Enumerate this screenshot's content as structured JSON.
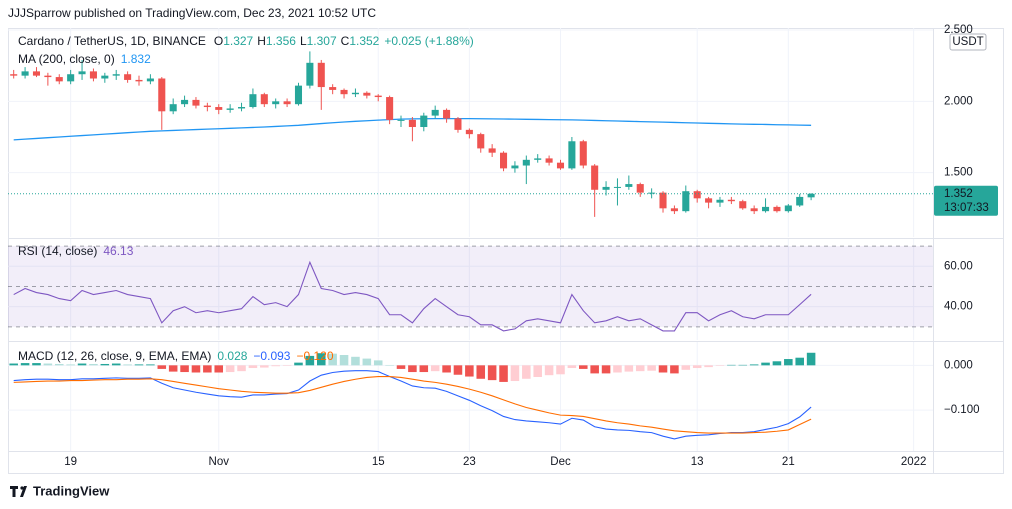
{
  "header": {
    "publisher": "JJJSparrow published on TradingView.com, Dec 23, 2021 10:52 UTC",
    "ohlc_letters": [
      "O",
      "H",
      "L",
      "C"
    ],
    "change": "+0.025 (+1.88%)",
    "currency": "USDT",
    "countdown": "13:07:33",
    "brand": "TradingView"
  },
  "chart_data": [
    {
      "type": "candlestick",
      "xlim": [
        -0.5,
        80.7
      ],
      "ylim": [
        1.049,
        2.514
      ],
      "yticks": [
        {
          "value": 1.5,
          "label": "1.500"
        },
        {
          "value": 2,
          "label": "2.000"
        },
        {
          "value": 2.5,
          "label": "2.500"
        }
      ],
      "grid": true,
      "series": [
        {
          "name": "Cardano / TetherUS, 1D, BINANCE",
          "up_color": "#26a69a",
          "down_color": "#ef5350",
          "open": [
            2.19,
            2.18,
            2.21,
            2.18,
            2.17,
            2.14,
            2.19,
            2.21,
            2.16,
            2.18,
            2.19,
            2.15,
            2.14,
            2.16,
            1.93,
            1.98,
            2.01,
            1.97,
            1.96,
            1.94,
            1.95,
            1.96,
            2.05,
            1.98,
            2.0,
            1.98,
            2.11,
            2.27,
            2.1,
            2.08,
            2.05,
            2.06,
            2.04,
            2.03,
            1.87,
            1.87,
            1.82,
            1.9,
            1.94,
            1.88,
            1.8,
            1.77,
            1.67,
            1.64,
            1.53,
            1.55,
            1.59,
            1.6,
            1.57,
            1.53,
            1.72,
            1.55,
            1.38,
            1.4,
            1.4,
            1.42,
            1.36,
            1.36,
            1.25,
            1.23,
            1.37,
            1.32,
            1.29,
            1.31,
            1.3,
            1.25,
            1.23,
            1.26,
            1.23,
            1.27,
            1.327
          ],
          "high": [
            2.22,
            2.24,
            2.24,
            2.2,
            2.19,
            2.22,
            2.29,
            2.23,
            2.2,
            2.22,
            2.21,
            2.18,
            2.19,
            2.17,
            2.02,
            2.04,
            2.03,
            1.99,
            1.98,
            1.98,
            1.99,
            2.09,
            2.06,
            2.02,
            2.02,
            2.13,
            2.35,
            2.29,
            2.12,
            2.09,
            2.09,
            2.07,
            2.05,
            2.04,
            1.9,
            1.89,
            1.92,
            1.97,
            1.95,
            1.89,
            1.81,
            1.78,
            1.7,
            1.65,
            1.58,
            1.62,
            1.63,
            1.62,
            1.59,
            1.75,
            1.73,
            1.56,
            1.44,
            1.46,
            1.48,
            1.43,
            1.39,
            1.37,
            1.27,
            1.41,
            1.38,
            1.33,
            1.33,
            1.33,
            1.31,
            1.27,
            1.32,
            1.27,
            1.28,
            1.35,
            1.356
          ],
          "low": [
            2.16,
            2.16,
            2.17,
            2.11,
            2.12,
            2.12,
            2.15,
            2.14,
            2.13,
            2.15,
            2.13,
            2.11,
            2.12,
            1.8,
            1.91,
            1.96,
            1.95,
            1.93,
            1.91,
            1.92,
            1.93,
            1.95,
            1.96,
            1.95,
            1.96,
            1.97,
            2.09,
            1.94,
            2.05,
            2.02,
            2.03,
            2.02,
            2.0,
            1.84,
            1.82,
            1.72,
            1.79,
            1.88,
            1.85,
            1.78,
            1.74,
            1.64,
            1.61,
            1.51,
            1.5,
            1.42,
            1.57,
            1.55,
            1.52,
            1.52,
            1.53,
            1.19,
            1.34,
            1.27,
            1.38,
            1.33,
            1.32,
            1.22,
            1.21,
            1.22,
            1.29,
            1.25,
            1.26,
            1.28,
            1.24,
            1.21,
            1.22,
            1.22,
            1.22,
            1.26,
            1.307
          ],
          "close": [
            2.18,
            2.21,
            2.18,
            2.17,
            2.14,
            2.19,
            2.21,
            2.16,
            2.18,
            2.19,
            2.15,
            2.14,
            2.16,
            1.93,
            1.98,
            2.01,
            1.97,
            1.96,
            1.94,
            1.95,
            1.96,
            2.05,
            1.98,
            2.0,
            1.98,
            2.11,
            2.27,
            2.1,
            2.08,
            2.05,
            2.06,
            2.04,
            2.03,
            1.87,
            1.87,
            1.82,
            1.9,
            1.94,
            1.88,
            1.8,
            1.77,
            1.67,
            1.64,
            1.53,
            1.55,
            1.59,
            1.6,
            1.57,
            1.53,
            1.72,
            1.55,
            1.38,
            1.4,
            1.4,
            1.42,
            1.36,
            1.36,
            1.25,
            1.23,
            1.37,
            1.32,
            1.29,
            1.31,
            1.3,
            1.25,
            1.23,
            1.26,
            1.23,
            1.27,
            1.33,
            1.352
          ]
        },
        {
          "name": "MA (200, close, 0)",
          "color": "#2196f3",
          "values": [
            1.73,
            1.735,
            1.74,
            1.745,
            1.75,
            1.755,
            1.76,
            1.765,
            1.77,
            1.775,
            1.78,
            1.785,
            1.79,
            1.793,
            1.796,
            1.799,
            1.802,
            1.805,
            1.808,
            1.811,
            1.814,
            1.817,
            1.82,
            1.824,
            1.828,
            1.832,
            1.838,
            1.844,
            1.85,
            1.855,
            1.86,
            1.864,
            1.868,
            1.872,
            1.875,
            1.877,
            1.878,
            1.879,
            1.879,
            1.879,
            1.879,
            1.878,
            1.877,
            1.876,
            1.875,
            1.874,
            1.873,
            1.872,
            1.871,
            1.87,
            1.868,
            1.866,
            1.864,
            1.862,
            1.86,
            1.858,
            1.856,
            1.854,
            1.852,
            1.85,
            1.848,
            1.846,
            1.844,
            1.842,
            1.84,
            1.839,
            1.838,
            1.836,
            1.835,
            1.833,
            1.832
          ]
        }
      ]
    },
    {
      "type": "line",
      "title": "RSI (14, close)",
      "ylim": [
        23.5,
        73.5
      ],
      "yticks": [
        {
          "value": 40,
          "label": "40.00"
        },
        {
          "value": 60,
          "label": "60.00"
        }
      ],
      "bands": [
        70,
        50,
        30
      ],
      "band_color": "#7e57c2",
      "grid": true,
      "series": [
        {
          "color": "#7e57c2",
          "values": [
            46,
            49,
            47,
            46,
            44,
            43,
            48,
            46,
            47,
            48,
            46,
            45,
            44,
            32,
            38,
            40,
            37,
            38,
            37,
            38,
            39,
            45,
            41,
            42,
            40,
            46,
            62,
            49,
            48,
            46,
            47,
            46,
            44,
            36,
            36,
            32,
            39,
            44,
            40,
            36,
            35,
            31,
            31,
            28,
            29,
            33,
            34,
            33,
            32,
            46,
            38,
            32,
            33,
            35,
            33,
            34,
            31,
            28,
            28,
            37,
            37,
            33,
            36,
            38,
            35,
            34,
            36,
            36,
            36,
            41,
            46.13
          ]
        }
      ]
    },
    {
      "type": "macd",
      "title": "MACD (12, 26, close, 9, EMA, EMA)",
      "ylim": [
        -0.191,
        0.052
      ],
      "yticks": [
        {
          "value": 0,
          "label": "0.000"
        },
        {
          "value": -0.1,
          "label": "−0.100"
        }
      ],
      "grid": true,
      "xticks": [
        {
          "value": 5,
          "label": "19"
        },
        {
          "value": 18,
          "label": "Nov"
        },
        {
          "value": 32,
          "label": "15"
        },
        {
          "value": 40,
          "label": "23"
        },
        {
          "value": 48,
          "label": "Dec"
        },
        {
          "value": 60,
          "label": "13"
        },
        {
          "value": 68,
          "label": "21"
        },
        {
          "value": 79,
          "label": "2022"
        }
      ],
      "series": [
        {
          "style": "histogram",
          "colors": [
            "#26a69a",
            "#b2dfdb",
            "#ffcdd2",
            "#ef5350"
          ],
          "values": [
            0.004,
            0.005,
            0.005,
            0.004,
            0.003,
            0.002,
            0.004,
            0.003,
            0.003,
            0.004,
            0.002,
            0.002,
            0.002,
            -0.008,
            -0.014,
            -0.015,
            -0.016,
            -0.016,
            -0.016,
            -0.015,
            -0.013,
            -0.006,
            -0.005,
            -0.002,
            -0.001,
            0.006,
            0.021,
            0.027,
            0.026,
            0.023,
            0.019,
            0.015,
            0.011,
            0.0,
            -0.008,
            -0.015,
            -0.015,
            -0.013,
            -0.016,
            -0.021,
            -0.025,
            -0.03,
            -0.033,
            -0.037,
            -0.035,
            -0.03,
            -0.026,
            -0.022,
            -0.02,
            -0.006,
            -0.008,
            -0.018,
            -0.018,
            -0.016,
            -0.014,
            -0.013,
            -0.012,
            -0.016,
            -0.018,
            -0.01,
            -0.006,
            -0.004,
            -0.001,
            0.001,
            0.001,
            0.002,
            0.006,
            0.009,
            0.014,
            0.017,
            0.028
          ],
          "value_labels": {
            "70": "0.028"
          }
        },
        {
          "style": "line",
          "color": "#2962ff",
          "values": [
            -0.034,
            -0.032,
            -0.031,
            -0.031,
            -0.032,
            -0.032,
            -0.03,
            -0.03,
            -0.029,
            -0.028,
            -0.029,
            -0.029,
            -0.028,
            -0.04,
            -0.05,
            -0.055,
            -0.06,
            -0.064,
            -0.068,
            -0.07,
            -0.071,
            -0.066,
            -0.066,
            -0.064,
            -0.063,
            -0.055,
            -0.035,
            -0.022,
            -0.016,
            -0.013,
            -0.012,
            -0.012,
            -0.014,
            -0.025,
            -0.035,
            -0.046,
            -0.05,
            -0.051,
            -0.058,
            -0.068,
            -0.078,
            -0.09,
            -0.101,
            -0.114,
            -0.121,
            -0.124,
            -0.126,
            -0.128,
            -0.131,
            -0.118,
            -0.122,
            -0.137,
            -0.142,
            -0.144,
            -0.145,
            -0.148,
            -0.15,
            -0.158,
            -0.164,
            -0.158,
            -0.156,
            -0.155,
            -0.152,
            -0.15,
            -0.15,
            -0.148,
            -0.143,
            -0.138,
            -0.13,
            -0.115,
            -0.093
          ],
          "value_labels": {
            "70": "−0.093"
          }
        },
        {
          "style": "line",
          "color": "#ff6d00",
          "values": [
            -0.038,
            -0.037,
            -0.036,
            -0.035,
            -0.035,
            -0.034,
            -0.034,
            -0.033,
            -0.032,
            -0.032,
            -0.031,
            -0.031,
            -0.03,
            -0.032,
            -0.036,
            -0.04,
            -0.044,
            -0.048,
            -0.052,
            -0.055,
            -0.058,
            -0.06,
            -0.061,
            -0.062,
            -0.062,
            -0.061,
            -0.056,
            -0.049,
            -0.042,
            -0.036,
            -0.031,
            -0.027,
            -0.025,
            -0.025,
            -0.027,
            -0.031,
            -0.035,
            -0.038,
            -0.042,
            -0.047,
            -0.053,
            -0.06,
            -0.068,
            -0.077,
            -0.086,
            -0.094,
            -0.1,
            -0.106,
            -0.111,
            -0.112,
            -0.114,
            -0.119,
            -0.124,
            -0.128,
            -0.131,
            -0.135,
            -0.138,
            -0.142,
            -0.146,
            -0.148,
            -0.15,
            -0.151,
            -0.151,
            -0.151,
            -0.151,
            -0.15,
            -0.149,
            -0.147,
            -0.144,
            -0.132,
            -0.12
          ],
          "value_labels": {
            "70": "−0.120"
          }
        }
      ]
    }
  ]
}
